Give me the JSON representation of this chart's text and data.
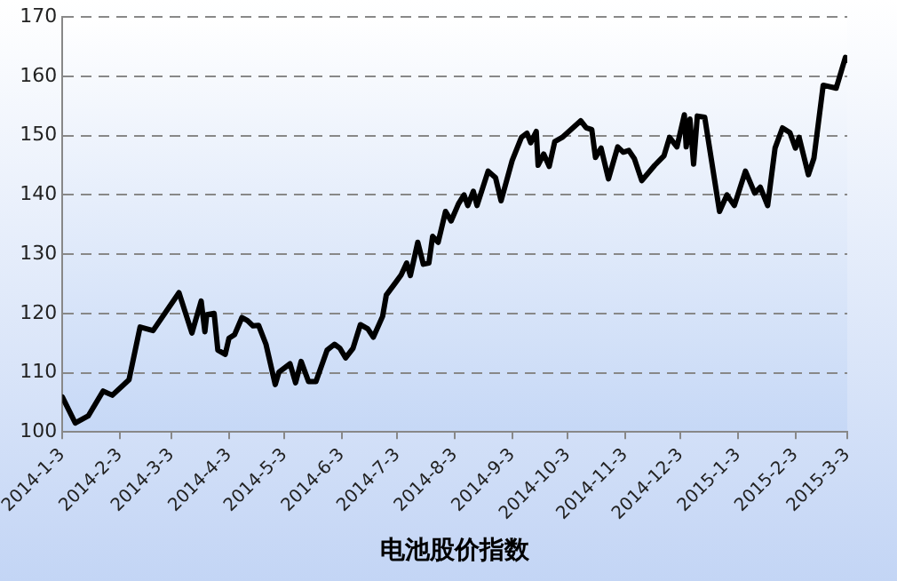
{
  "chart_data": {
    "type": "line",
    "xlabel": "电池股价指数",
    "x": [
      "2014-01-03",
      "2014-01-10",
      "2014-01-17",
      "2014-01-25",
      "2014-01-30",
      "2014-02-08",
      "2014-02-14",
      "2014-02-21",
      "2014-03-07",
      "2014-03-14",
      "2014-03-19",
      "2014-03-21",
      "2014-03-22",
      "2014-03-26",
      "2014-03-28",
      "2014-04-01",
      "2014-04-03",
      "2014-04-06",
      "2014-04-10",
      "2014-04-13",
      "2014-04-16",
      "2014-04-19",
      "2014-04-23",
      "2014-04-28",
      "2014-04-30",
      "2014-05-06",
      "2014-05-09",
      "2014-05-12",
      "2014-05-16",
      "2014-05-20",
      "2014-05-26",
      "2014-05-30",
      "2014-06-02",
      "2014-06-05",
      "2014-06-09",
      "2014-06-13",
      "2014-06-17",
      "2014-06-20",
      "2014-06-25",
      "2014-06-27",
      "2014-07-02",
      "2014-07-05",
      "2014-07-08",
      "2014-07-10",
      "2014-07-14",
      "2014-07-17",
      "2014-07-20",
      "2014-07-22",
      "2014-07-25",
      "2014-07-29",
      "2014-08-01",
      "2014-08-05",
      "2014-08-08",
      "2014-08-10",
      "2014-08-13",
      "2014-08-15",
      "2014-08-21",
      "2014-08-25",
      "2014-08-28",
      "2014-09-03",
      "2014-09-08",
      "2014-09-11",
      "2014-09-13",
      "2014-09-16",
      "2014-09-17",
      "2014-09-20",
      "2014-09-23",
      "2014-09-26",
      "2014-09-30",
      "2014-10-10",
      "2014-10-13",
      "2014-10-16",
      "2014-10-18",
      "2014-10-21",
      "2014-10-25",
      "2014-10-30",
      "2014-11-02",
      "2014-11-05",
      "2014-11-08",
      "2014-11-12",
      "2014-11-19",
      "2014-11-24",
      "2014-11-27",
      "2014-12-01",
      "2014-12-05",
      "2014-12-06",
      "2014-12-08",
      "2014-12-10",
      "2014-12-12",
      "2014-12-16",
      "2014-12-24",
      "2014-12-28",
      "2015-01-01",
      "2015-01-07",
      "2015-01-12",
      "2015-01-15",
      "2015-01-19",
      "2015-01-23",
      "2015-01-27",
      "2015-01-31",
      "2015-02-03",
      "2015-02-05",
      "2015-02-10",
      "2015-02-13",
      "2015-02-18",
      "2015-02-25",
      "2015-03-02",
      "2015-03-03"
    ],
    "series": [
      {
        "color": "#000000",
        "values": [
          105.9,
          101.5,
          102.7,
          106.9,
          106.2,
          108.8,
          117.7,
          117.1,
          123.5,
          116.7,
          122.1,
          116.9,
          119.8,
          120,
          113.8,
          113.1,
          115.8,
          116.4,
          119.3,
          118.8,
          117.9,
          118,
          114.8,
          108,
          110.1,
          111.5,
          108.3,
          111.9,
          108.5,
          108.5,
          113.8,
          114.8,
          114.1,
          112.5,
          114.1,
          118.1,
          117.4,
          116,
          119.5,
          123.1,
          125.2,
          126.5,
          128.5,
          126.4,
          132,
          128.3,
          128.5,
          133,
          132,
          137.2,
          135.6,
          138.5,
          140,
          138.2,
          140.6,
          138.2,
          144,
          142.9,
          139,
          145.8,
          149.7,
          150.4,
          148.8,
          150.7,
          145,
          146.9,
          144.8,
          149,
          149.7,
          152.5,
          151.3,
          151,
          146.3,
          147.9,
          142.7,
          148.1,
          147.2,
          147.5,
          146.1,
          142.4,
          145,
          146.6,
          149.7,
          148.1,
          153.5,
          148.1,
          152.8,
          145.2,
          153.3,
          153.1,
          137.2,
          140,
          138.2,
          144,
          140.3,
          141.3,
          138.2,
          147.9,
          151.3,
          150.5,
          147.9,
          149.7,
          143.4,
          146.2,
          158.5,
          158,
          163.2,
          162.7
        ]
      }
    ],
    "xlim": [
      "2014-01-03",
      "2015-03-03"
    ],
    "xticks": [
      {
        "value": "2014-01-03",
        "label": "2014-1-3"
      },
      {
        "value": "2014-02-03",
        "label": "2014-2-3"
      },
      {
        "value": "2014-03-03",
        "label": "2014-3-3"
      },
      {
        "value": "2014-04-03",
        "label": "2014-4-3"
      },
      {
        "value": "2014-05-03",
        "label": "2014-5-3"
      },
      {
        "value": "2014-06-03",
        "label": "2014-6-3"
      },
      {
        "value": "2014-07-03",
        "label": "2014-7-3"
      },
      {
        "value": "2014-08-03",
        "label": "2014-8-3"
      },
      {
        "value": "2014-09-03",
        "label": "2014-9-3"
      },
      {
        "value": "2014-10-03",
        "label": "2014-10-3"
      },
      {
        "value": "2014-11-03",
        "label": "2014-11-3"
      },
      {
        "value": "2014-12-03",
        "label": "2014-12-3"
      },
      {
        "value": "2015-01-03",
        "label": "2015-1-3"
      },
      {
        "value": "2015-02-03",
        "label": "2015-2-3"
      },
      {
        "value": "2015-03-03",
        "label": "2015-3-3"
      }
    ],
    "ylim": [
      100,
      170
    ],
    "yticks": [
      100,
      110,
      120,
      130,
      140,
      150,
      160,
      170
    ],
    "grid": "y",
    "legend": false,
    "marker": "none",
    "line_style": "solid"
  }
}
